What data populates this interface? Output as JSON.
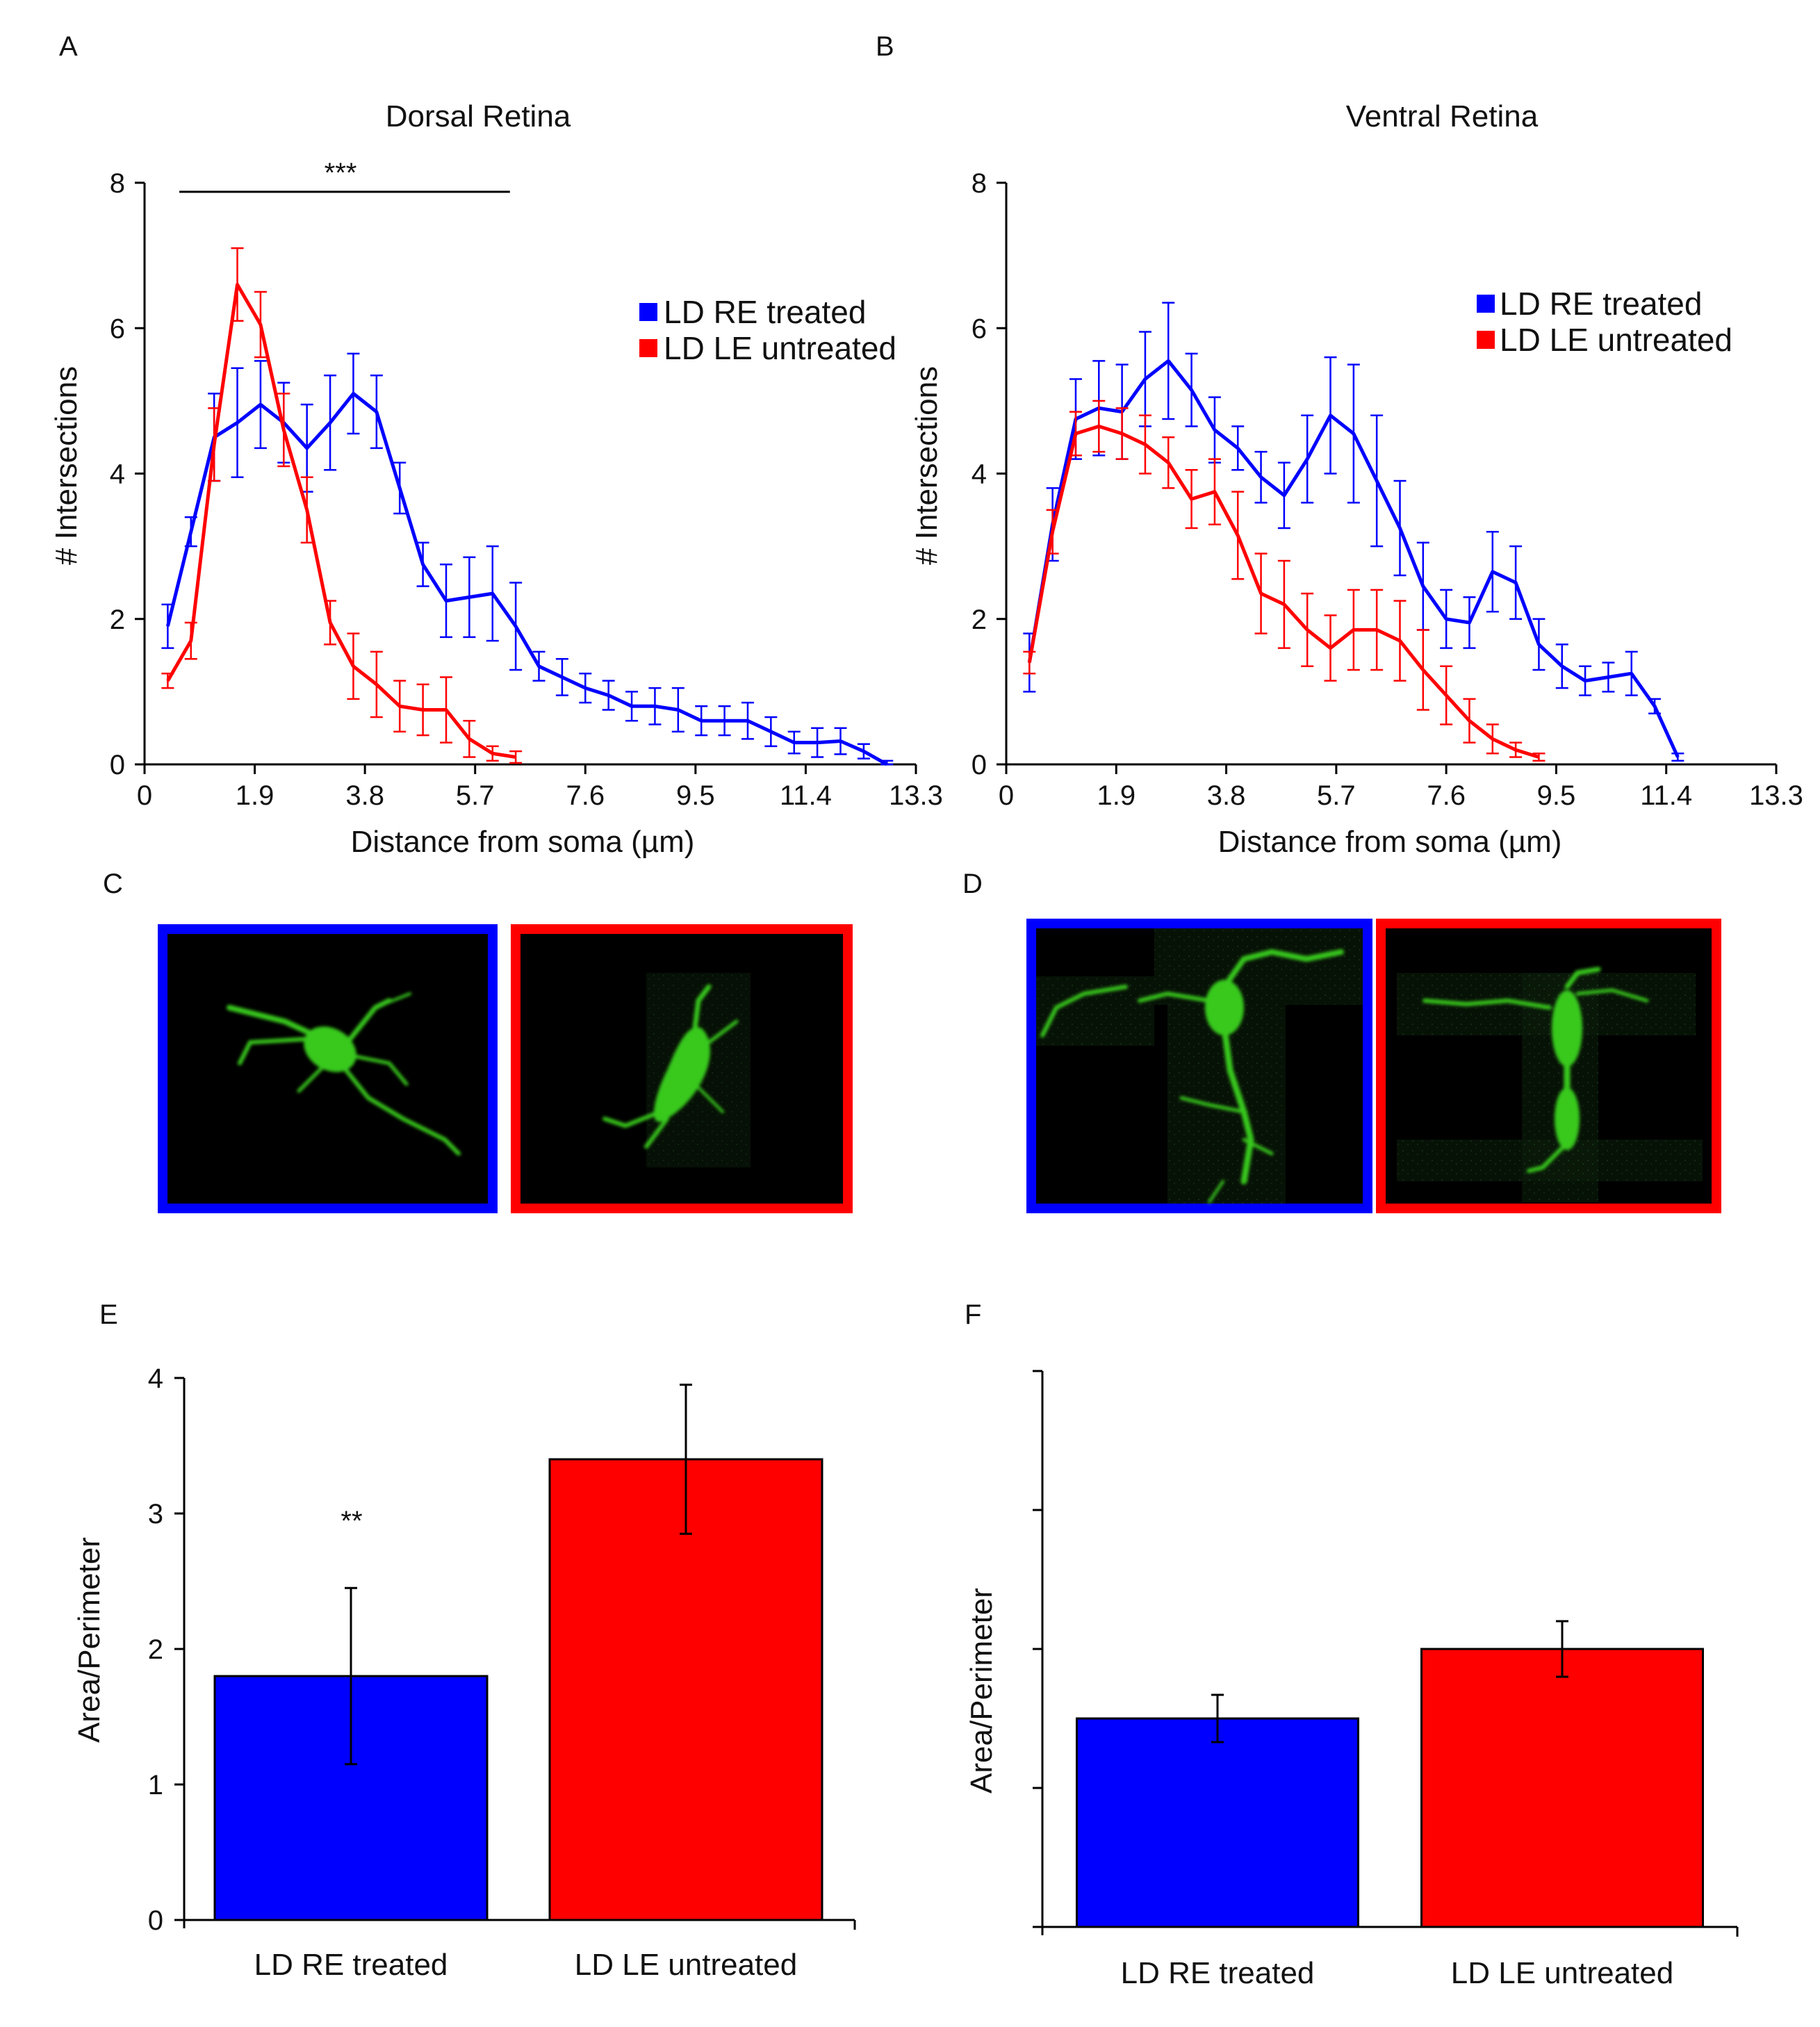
{
  "colors": {
    "treated": "#0000ff",
    "untreated": "#ff0000",
    "cell_green": "#39c91f",
    "axis": "#000000"
  },
  "chart_data": [
    {
      "id": "A",
      "panel": "A",
      "type": "line",
      "title": "Dorsal Retina",
      "xlabel": "Distance from soma (µm)",
      "ylabel": "# Intersections",
      "xlim": [
        0,
        13.3
      ],
      "ylim": [
        0,
        8
      ],
      "xticks": [
        "0",
        "1.9",
        "3.8",
        "5.7",
        "7.6",
        "9.5",
        "11.4",
        "13.3"
      ],
      "yticks": [
        "0",
        "2",
        "4",
        "6",
        "8"
      ],
      "significance": {
        "label": "***",
        "from": 0.6,
        "to": 6.3
      },
      "legend": {
        "position": "top-right"
      },
      "series": [
        {
          "name": "LD RE treated",
          "color": "#0000ff",
          "x": [
            0.4,
            0.8,
            1.2,
            1.6,
            2.0,
            2.4,
            2.8,
            3.2,
            3.6,
            4.0,
            4.4,
            4.8,
            5.2,
            5.6,
            6.0,
            6.4,
            6.8,
            7.2,
            7.6,
            8.0,
            8.4,
            8.8,
            9.2,
            9.6,
            10.0,
            10.4,
            10.8,
            11.2,
            11.6,
            12.0,
            12.4,
            12.8
          ],
          "y": [
            1.9,
            3.2,
            4.5,
            4.7,
            4.95,
            4.7,
            4.35,
            4.7,
            5.1,
            4.85,
            3.8,
            2.75,
            2.25,
            2.3,
            2.35,
            1.9,
            1.35,
            1.2,
            1.05,
            0.95,
            0.8,
            0.8,
            0.75,
            0.6,
            0.6,
            0.6,
            0.45,
            0.3,
            0.3,
            0.32,
            0.18,
            0.0
          ],
          "err": [
            0.3,
            0.2,
            0.6,
            0.75,
            0.6,
            0.55,
            0.6,
            0.65,
            0.55,
            0.5,
            0.35,
            0.3,
            0.5,
            0.55,
            0.65,
            0.6,
            0.2,
            0.25,
            0.2,
            0.2,
            0.2,
            0.25,
            0.3,
            0.2,
            0.2,
            0.25,
            0.2,
            0.15,
            0.2,
            0.18,
            0.1,
            0.05
          ]
        },
        {
          "name": "LD LE untreated",
          "color": "#ff0000",
          "x": [
            0.4,
            0.8,
            1.2,
            1.6,
            2.0,
            2.4,
            2.8,
            3.2,
            3.6,
            4.0,
            4.4,
            4.8,
            5.2,
            5.6,
            6.0,
            6.4
          ],
          "y": [
            1.15,
            1.7,
            4.4,
            6.6,
            6.05,
            4.6,
            3.5,
            1.95,
            1.35,
            1.1,
            0.8,
            0.75,
            0.75,
            0.35,
            0.15,
            0.1
          ],
          "err": [
            0.1,
            0.25,
            0.5,
            0.5,
            0.45,
            0.5,
            0.45,
            0.3,
            0.45,
            0.45,
            0.35,
            0.35,
            0.45,
            0.25,
            0.1,
            0.08
          ]
        }
      ]
    },
    {
      "id": "B",
      "panel": "B",
      "type": "line",
      "title": "Ventral Retina",
      "xlabel": "Distance from soma (µm)",
      "ylabel": "# Intersections",
      "xlim": [
        0,
        13.3
      ],
      "ylim": [
        0,
        8
      ],
      "xticks": [
        "0",
        "1.9",
        "3.8",
        "5.7",
        "7.6",
        "9.5",
        "11.4",
        "13.3"
      ],
      "yticks": [
        "0",
        "2",
        "4",
        "6",
        "8"
      ],
      "legend": {
        "position": "top-right"
      },
      "series": [
        {
          "name": "LD RE treated",
          "color": "#0000ff",
          "x": [
            0.4,
            0.8,
            1.2,
            1.6,
            2.0,
            2.4,
            2.8,
            3.2,
            3.6,
            4.0,
            4.4,
            4.8,
            5.2,
            5.6,
            6.0,
            6.4,
            6.8,
            7.2,
            7.6,
            8.0,
            8.4,
            8.8,
            9.2,
            9.6,
            10.0,
            10.4,
            10.8,
            11.2,
            11.6
          ],
          "y": [
            1.4,
            3.3,
            4.75,
            4.9,
            4.85,
            5.3,
            5.55,
            5.15,
            4.6,
            4.35,
            3.95,
            3.7,
            4.2,
            4.8,
            4.55,
            3.9,
            3.25,
            2.45,
            2.0,
            1.95,
            2.65,
            2.5,
            1.65,
            1.35,
            1.15,
            1.2,
            1.25,
            0.8,
            0.1
          ],
          "err": [
            0.4,
            0.5,
            0.55,
            0.65,
            0.65,
            0.65,
            0.8,
            0.5,
            0.45,
            0.3,
            0.35,
            0.45,
            0.6,
            0.8,
            0.95,
            0.9,
            0.65,
            0.6,
            0.4,
            0.35,
            0.55,
            0.5,
            0.35,
            0.3,
            0.2,
            0.2,
            0.3,
            0.1,
            0.05
          ]
        },
        {
          "name": "LD LE untreated",
          "color": "#ff0000",
          "x": [
            0.4,
            0.8,
            1.2,
            1.6,
            2.0,
            2.4,
            2.8,
            3.2,
            3.6,
            4.0,
            4.4,
            4.8,
            5.2,
            5.6,
            6.0,
            6.4,
            6.8,
            7.2,
            7.6,
            8.0,
            8.4,
            8.8,
            9.2
          ],
          "y": [
            1.4,
            3.2,
            4.55,
            4.65,
            4.55,
            4.4,
            4.15,
            3.65,
            3.75,
            3.15,
            2.35,
            2.2,
            1.85,
            1.6,
            1.85,
            1.85,
            1.7,
            1.3,
            0.95,
            0.6,
            0.35,
            0.2,
            0.1
          ],
          "err": [
            0.15,
            0.3,
            0.3,
            0.35,
            0.35,
            0.4,
            0.35,
            0.4,
            0.45,
            0.6,
            0.55,
            0.6,
            0.5,
            0.45,
            0.55,
            0.55,
            0.55,
            0.55,
            0.4,
            0.3,
            0.2,
            0.1,
            0.05
          ]
        }
      ]
    },
    {
      "id": "E",
      "panel": "E",
      "type": "bar",
      "title": "",
      "xlabel": "",
      "ylabel": "Area/Perimeter",
      "ylim": [
        0,
        4
      ],
      "yticks": [
        "0",
        "1",
        "2",
        "3",
        "4"
      ],
      "categories": [
        "LD RE treated",
        "LD LE untreated"
      ],
      "values": [
        1.8,
        3.4
      ],
      "err": [
        0.65,
        0.55
      ],
      "colors": [
        "#0000ff",
        "#ff0000"
      ],
      "significance": {
        "label": "**",
        "category": 0
      }
    },
    {
      "id": "F",
      "panel": "F",
      "type": "bar",
      "title": "",
      "xlabel": "",
      "ylabel": "Area/Perimeter",
      "ylim": [
        0,
        4
      ],
      "yticks": [],
      "categories": [
        "LD RE treated",
        "LD LE untreated"
      ],
      "values": [
        1.5,
        2.0
      ],
      "err": [
        0.17,
        0.2
      ],
      "colors": [
        "#0000ff",
        "#ff0000"
      ]
    }
  ],
  "panels": {
    "C": "C",
    "D": "D"
  },
  "micrographs": [
    {
      "id": "C-treated",
      "panel": "C",
      "group": "LD RE treated",
      "frame_color": "#0000ff"
    },
    {
      "id": "C-untreated",
      "panel": "C",
      "group": "LD LE untreated",
      "frame_color": "#ff0000"
    },
    {
      "id": "D-treated",
      "panel": "D",
      "group": "LD RE treated",
      "frame_color": "#0000ff"
    },
    {
      "id": "D-untreated",
      "panel": "D",
      "group": "LD LE untreated",
      "frame_color": "#ff0000"
    }
  ]
}
